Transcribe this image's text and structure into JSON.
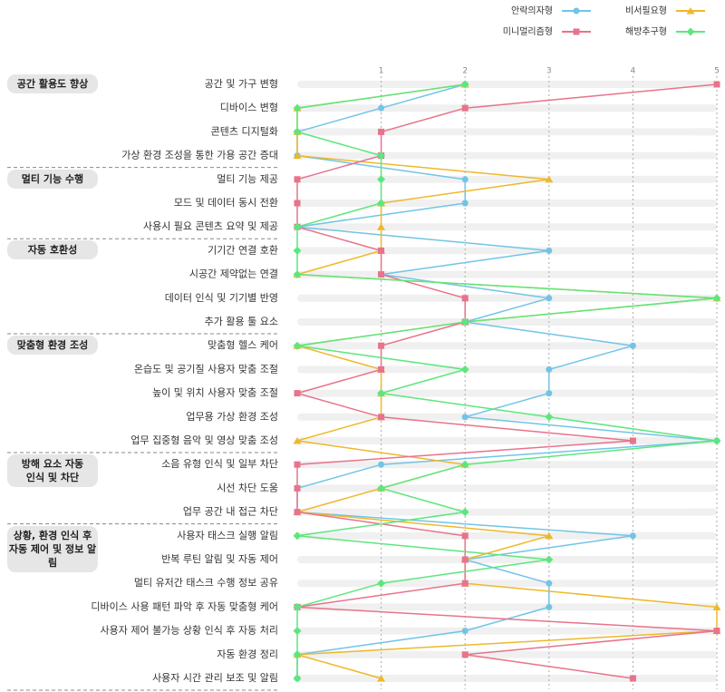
{
  "chart_data": {
    "type": "line",
    "orientation": "horizontal",
    "xlim": [
      0,
      5
    ],
    "xticks": [
      1,
      2,
      3,
      4,
      5
    ],
    "grid": true,
    "legend": "top-right",
    "groups": [
      {
        "name": "공간 활용도 향상",
        "categories": [
          "공간 및 가구 변형",
          "디바이스 변형",
          "콘텐츠 디지털화",
          "가상 환경 조성을 통한 가용 공간 증대"
        ]
      },
      {
        "name": "멀티 기능 수행",
        "categories": [
          "멀티 기능 제공",
          "모드 및 데이터 동시 전환",
          "사용시 필요 콘텐츠 요약 및 제공"
        ]
      },
      {
        "name": "자동 호환성",
        "categories": [
          "기기간 연결 호환",
          "시공간 제약없는 연결",
          "데이터 인식 및 기기별 반영",
          "추가 활용 툴 요소"
        ]
      },
      {
        "name": "맞춤형 환경 조성",
        "categories": [
          "맞춤형 헬스 케어",
          "온습도 및 공기질 사용자 맞춤 조절",
          "높이 및 위치 사용자 맞춤 조절",
          "업무용 가상 환경 조성",
          "업무 집중형 음악 및 영상 맞춤 조성"
        ]
      },
      {
        "name": "방해 요소 자동\n인식 및 차단",
        "categories": [
          "소음 유형 인식 및 일부 차단",
          "시선 차단 도움",
          "업무 공간 내 접근 차단"
        ]
      },
      {
        "name": "상황, 환경 인식 후\n자동 제어 및 정보 알림",
        "categories": [
          "사용자 태스크 실행 알림",
          "반복 루틴 알림 및 자동 제어",
          "멀티 유저간 태스크 수행 정보 공유",
          "디바이스 사용 패턴 파악 후 자동 맞춤형 케어",
          "사용자 제어 불가능 상황 인식 후 자동 처리",
          "자동 환경 정리",
          "사용자 시간 관리 보조 및 알림"
        ]
      }
    ],
    "series": [
      {
        "name": "안락의자형",
        "color": "#72c4e6",
        "marker": "circle",
        "values": [
          2,
          1,
          0,
          0,
          2,
          2,
          0,
          3,
          1,
          3,
          2,
          4,
          3,
          3,
          2,
          5,
          1,
          0,
          0,
          4,
          2,
          3,
          3,
          2,
          0,
          0
        ]
      },
      {
        "name": "비서필요형",
        "color": "#eeb82a",
        "marker": "triangle",
        "values": [
          2,
          0,
          0,
          0,
          3,
          1,
          1,
          1,
          0,
          5,
          2,
          0,
          1,
          1,
          1,
          0,
          2,
          1,
          0,
          3,
          2,
          2,
          5,
          5,
          0,
          1
        ]
      },
      {
        "name": "미니멀리즘형",
        "color": "#e8738b",
        "marker": "square",
        "values": [
          5,
          2,
          1,
          1,
          0,
          0,
          0,
          1,
          1,
          2,
          2,
          1,
          1,
          0,
          1,
          4,
          0,
          0,
          0,
          2,
          2,
          2,
          0,
          5,
          2,
          4
        ]
      },
      {
        "name": "해방추구형",
        "color": "#5ee67e",
        "marker": "diamond",
        "values": [
          2,
          0,
          0,
          1,
          1,
          1,
          0,
          0,
          0,
          5,
          2,
          0,
          2,
          1,
          3,
          5,
          2,
          1,
          2,
          0,
          3,
          1,
          0,
          0,
          0,
          0
        ]
      }
    ]
  }
}
